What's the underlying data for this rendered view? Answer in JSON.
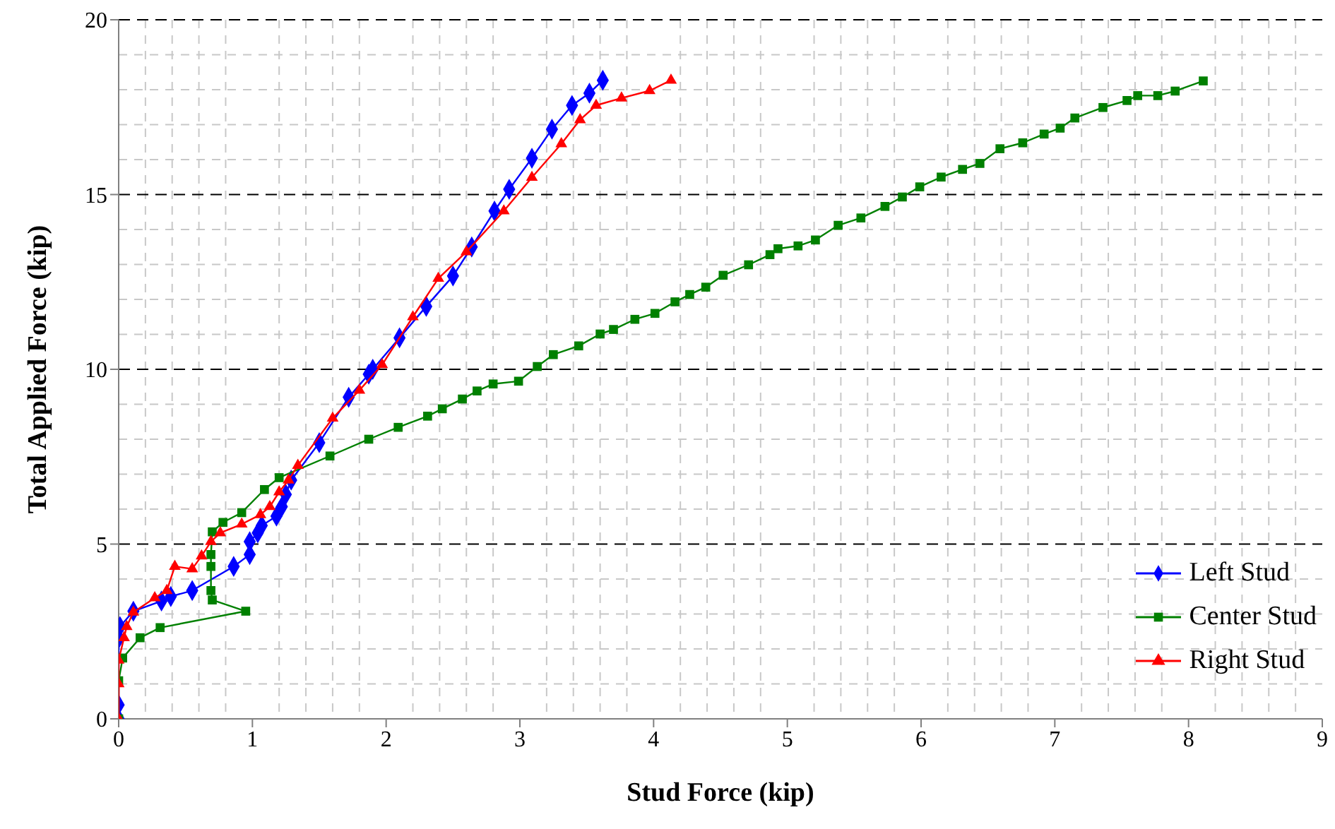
{
  "chart_data": {
    "type": "line",
    "xlabel": "Stud Force (kip)",
    "ylabel": "Total Applied Force (kip)",
    "xlim": [
      0,
      9
    ],
    "xticks": [
      0,
      1,
      2,
      3,
      4,
      5,
      6,
      7,
      8,
      9
    ],
    "ylim": [
      0,
      20
    ],
    "yticks": [
      0,
      5,
      10,
      15,
      20
    ],
    "grid": true,
    "legend": "bottom right",
    "line_style": "solid",
    "series": [
      {
        "name": "Left Stud",
        "color": "#0000ff",
        "marker": "diamond",
        "x": [
          0,
          0,
          0,
          0.01,
          0.11,
          0.32,
          0.39,
          0.55,
          0.86,
          0.98,
          0.98,
          1.04,
          1.07,
          1.18,
          1.22,
          1.25,
          1.29,
          1.5,
          1.72,
          1.87,
          1.9,
          2.1,
          2.3,
          2.5,
          2.64,
          2.81,
          2.92,
          3.09,
          3.24,
          3.39,
          3.52,
          3.62
        ],
        "values": [
          0,
          0.4,
          2.3,
          2.64,
          3.08,
          3.37,
          3.5,
          3.67,
          4.36,
          4.7,
          5.07,
          5.32,
          5.53,
          5.8,
          6.07,
          6.42,
          6.83,
          7.9,
          9.2,
          9.86,
          10.0,
          10.9,
          11.8,
          12.67,
          13.5,
          14.53,
          15.15,
          16.04,
          16.87,
          17.55,
          17.9,
          18.27
        ]
      },
      {
        "name": "Center Stud",
        "color": "#008000",
        "marker": "square",
        "x": [
          0,
          0,
          0.03,
          0.16,
          0.31,
          0.95,
          0.7,
          0.69,
          0.69,
          0.69,
          0.7,
          0.78,
          0.92,
          1.09,
          1.2,
          1.58,
          1.87,
          2.09,
          2.31,
          2.42,
          2.57,
          2.68,
          2.8,
          2.99,
          3.13,
          3.25,
          3.44,
          3.6,
          3.7,
          3.86,
          4.01,
          4.16,
          4.27,
          4.39,
          4.52,
          4.71,
          4.87,
          4.93,
          5.08,
          5.21,
          5.38,
          5.55,
          5.73,
          5.86,
          5.99,
          6.15,
          6.31,
          6.44,
          6.59,
          6.76,
          6.92,
          7.04,
          7.15,
          7.36,
          7.54,
          7.62,
          7.77,
          7.9,
          8.11
        ],
        "values": [
          0,
          1.09,
          1.74,
          2.32,
          2.61,
          3.08,
          3.4,
          3.67,
          4.36,
          4.7,
          5.35,
          5.62,
          5.9,
          6.56,
          6.9,
          7.52,
          8.0,
          8.34,
          8.66,
          8.87,
          9.15,
          9.38,
          9.58,
          9.66,
          10.08,
          10.42,
          10.67,
          11.01,
          11.14,
          11.43,
          11.6,
          11.93,
          12.14,
          12.35,
          12.69,
          12.99,
          13.28,
          13.45,
          13.53,
          13.7,
          14.12,
          14.33,
          14.66,
          14.93,
          15.22,
          15.5,
          15.72,
          15.89,
          16.31,
          16.48,
          16.73,
          16.9,
          17.19,
          17.49,
          17.69,
          17.83,
          17.83,
          17.96,
          18.25
        ]
      },
      {
        "name": "Right Stud",
        "color": "#ff0000",
        "marker": "triangle",
        "x": [
          0,
          0,
          0,
          0.04,
          0.06,
          0.11,
          0.27,
          0.36,
          0.42,
          0.55,
          0.62,
          0.69,
          0.76,
          0.92,
          1.06,
          1.13,
          1.2,
          1.27,
          1.34,
          1.6,
          1.8,
          1.97,
          2.2,
          2.39,
          2.6,
          2.88,
          3.09,
          3.31,
          3.45,
          3.57,
          3.76,
          3.97,
          4.13
        ],
        "values": [
          0,
          1.0,
          1.68,
          2.32,
          2.64,
          3.05,
          3.46,
          3.67,
          4.36,
          4.29,
          4.66,
          5.07,
          5.32,
          5.57,
          5.84,
          6.07,
          6.49,
          6.83,
          7.25,
          8.6,
          9.4,
          10.13,
          11.5,
          12.6,
          13.36,
          14.53,
          15.49,
          16.45,
          17.14,
          17.55,
          17.76,
          17.97,
          18.27
        ]
      }
    ]
  }
}
